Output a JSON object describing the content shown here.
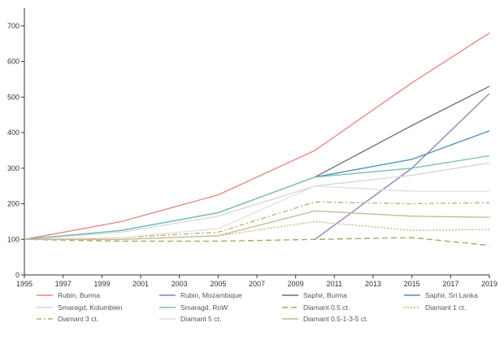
{
  "chart_data": {
    "type": "line",
    "xlim": [
      1995,
      2019
    ],
    "ylim": [
      0,
      750
    ],
    "x_ticks": [
      "1995",
      "1997",
      "1999",
      "2001",
      "2003",
      "2005",
      "2007",
      "2009",
      "2011",
      "2013",
      "2015",
      "2017",
      "2019"
    ],
    "y_ticks": [
      "0",
      "100",
      "200",
      "300",
      "400",
      "500",
      "600",
      "700"
    ],
    "grid": false,
    "legend_position": "bottom",
    "series": [
      {
        "name": "Rubin, Burma",
        "color": "#e8837f",
        "dash": "solid",
        "x": [
          1995,
          2000,
          2005,
          2010,
          2015,
          2019
        ],
        "values": [
          100,
          150,
          225,
          350,
          540,
          680
        ]
      },
      {
        "name": "Rubin, Mozambique",
        "color": "#8a7fb8",
        "dash": "solid",
        "x": [
          2010,
          2015,
          2019
        ],
        "values": [
          100,
          300,
          510
        ]
      },
      {
        "name": "Saphir, Burma",
        "color": "#6b6b6b",
        "dash": "solid",
        "x": [
          2010,
          2015,
          2019
        ],
        "values": [
          275,
          420,
          530
        ]
      },
      {
        "name": "Saphir, Sri Lanka",
        "color": "#4a8fba",
        "dash": "solid",
        "x": [
          1995,
          2000,
          2005,
          2010,
          2015,
          2019
        ],
        "values": [
          100,
          125,
          175,
          275,
          325,
          405
        ]
      },
      {
        "name": "Smaragd, Kolumbien",
        "color": "#d6d6d6",
        "dash": "solid",
        "x": [
          1995,
          2000,
          2005,
          2010,
          2015,
          2019
        ],
        "values": [
          100,
          120,
          165,
          250,
          280,
          315
        ]
      },
      {
        "name": "Smaragd, RoW",
        "color": "#78c0b0",
        "dash": "solid",
        "x": [
          1995,
          2000,
          2005,
          2010,
          2015,
          2019
        ],
        "values": [
          100,
          125,
          175,
          275,
          300,
          335
        ]
      },
      {
        "name": "Diamant 0.5 ct.",
        "color": "#a8a05c",
        "dash": "long",
        "x": [
          1995,
          2000,
          2005,
          2010,
          2015,
          2019
        ],
        "values": [
          100,
          95,
          95,
          100,
          105,
          83
        ]
      },
      {
        "name": "Diamant 1 ct.",
        "color": "#c8b070",
        "dash": "dot",
        "x": [
          1995,
          2000,
          2005,
          2010,
          2015,
          2019
        ],
        "values": [
          100,
          100,
          110,
          150,
          125,
          128
        ]
      },
      {
        "name": "Diamant 3 ct.",
        "color": "#b8b06c",
        "dash": "dashdot",
        "x": [
          1995,
          2000,
          2005,
          2010,
          2015,
          2019
        ],
        "values": [
          100,
          105,
          120,
          205,
          200,
          203
        ]
      },
      {
        "name": "Diamant 5 ct.",
        "color": "#e0e0e0",
        "dash": "solid",
        "x": [
          1995,
          2000,
          2005,
          2010,
          2015,
          2019
        ],
        "values": [
          100,
          105,
          130,
          250,
          235,
          235
        ]
      },
      {
        "name": "Diamant 0.5-1-3-5 ct.",
        "color": "#c8b890",
        "dash": "solid",
        "x": [
          1995,
          2000,
          2005,
          2010,
          2015,
          2019
        ],
        "values": [
          100,
          100,
          110,
          180,
          165,
          162
        ]
      }
    ]
  }
}
